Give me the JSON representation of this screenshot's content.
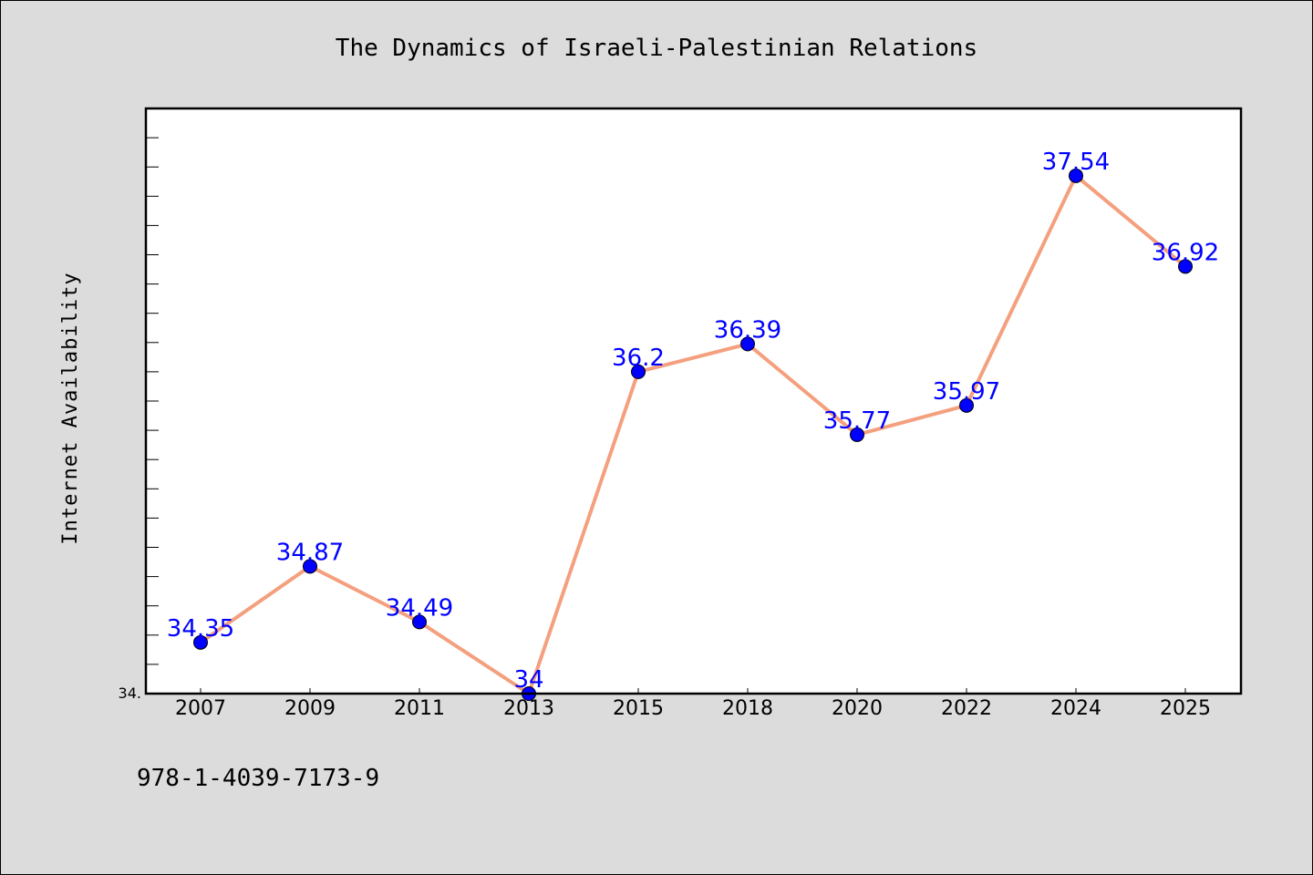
{
  "footer_text": "978-1-4039-7173-9",
  "chart_data": {
    "type": "line",
    "title": "The Dynamics of Israeli-Palestinian Relations",
    "xlabel": "",
    "ylabel": "Internet Availability",
    "categories": [
      "2007",
      "2009",
      "2011",
      "2013",
      "2015",
      "2018",
      "2020",
      "2022",
      "2024",
      "2025"
    ],
    "series": [
      {
        "values": [
          34.35,
          34.87,
          34.49,
          34,
          36.2,
          36.39,
          35.77,
          35.97,
          37.54,
          36.92
        ],
        "labels": [
          "34.35",
          "34.87",
          "34.49",
          "34",
          "36.2",
          "36.39",
          "35.77",
          "35.97",
          "37.54",
          "36.92"
        ],
        "line_color": "#f4a07e",
        "marker_color": "#0000ff"
      }
    ],
    "ylim": [
      34,
      38
    ],
    "y_tick_labels": [
      "34."
    ],
    "legend": "none",
    "grid": false,
    "plot_background": "#ffffff",
    "figure_background": "#dcdcdc"
  }
}
